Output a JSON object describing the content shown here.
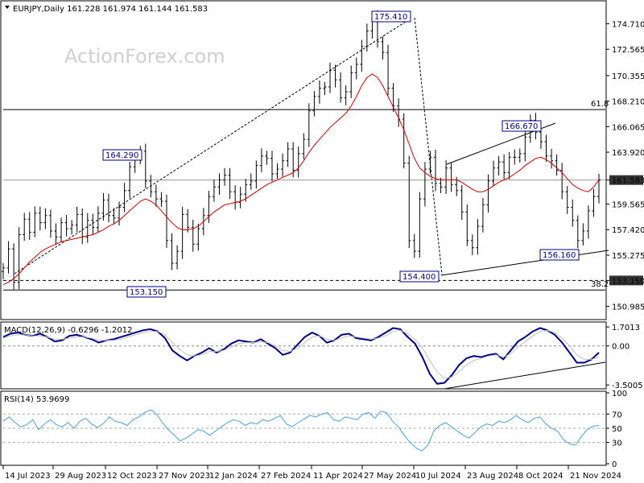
{
  "header": {
    "main": "EURJPY,Daily  161.228 161.974 161.144 161.583",
    "macd": "MACD(12,26,9) -0.6296 -1.2012",
    "rsi": "RSI(14) 53.9699"
  },
  "watermark": "ActionForex.com",
  "colors": {
    "candle": "#000000",
    "ma": "#d00000",
    "macd": "#000080",
    "signal": "#c0c0c0",
    "rsi": "#4aa0d8",
    "label_text": "#000080",
    "price_tag_bg": "#333333"
  },
  "chart_data": [
    {
      "type": "candlestick",
      "title": "EURJPY,Daily",
      "ohlc_last": {
        "open": 161.228,
        "high": 161.974,
        "low": 161.144,
        "close": 161.583
      },
      "ylim": [
        150.0,
        176.5
      ],
      "y_ticks": [
        "174.710",
        "172.565",
        "170.355",
        "168.210",
        "166.065",
        "163.920",
        "161.583",
        "159.565",
        "157.420",
        "155.275",
        "153.150",
        "150.985"
      ],
      "x_ticks": [
        "14 Jul 2023",
        "29 Aug 2023",
        "12 Oct 2023",
        "27 Nov 2023",
        "12 Jan 2024",
        "27 Feb 2024",
        "11 Apr 2024",
        "27 May 2024",
        "10 Jul 2024",
        "23 Aug 2024",
        "8 Oct 2024",
        "21 Nov 2024"
      ],
      "close_series": [
        154.2,
        155.8,
        153.0,
        157.0,
        158.3,
        157.2,
        158.8,
        158.0,
        158.6,
        157.3,
        156.8,
        158.0,
        157.5,
        157.8,
        158.7,
        156.8,
        158.2,
        157.6,
        158.8,
        159.9,
        158.6,
        158.4,
        159.3,
        160.7,
        162.7,
        163.5,
        164.0,
        161.5,
        160.6,
        160.0,
        159.8,
        156.5,
        154.6,
        155.6,
        158.7,
        157.6,
        156.2,
        157.5,
        158.6,
        160.2,
        161.0,
        161.6,
        162.0,
        160.6,
        159.7,
        160.4,
        161.2,
        161.5,
        162.8,
        163.6,
        163.4,
        162.1,
        162.5,
        163.2,
        164.2,
        162.4,
        163.8,
        165.0,
        167.4,
        168.6,
        169.3,
        169.4,
        170.8,
        170.0,
        168.5,
        169.0,
        170.6,
        171.3,
        172.8,
        174.1,
        175.2,
        173.2,
        172.3,
        169.3,
        167.8,
        166.7,
        163.0,
        156.5,
        155.6,
        160.0,
        162.5,
        163.5,
        161.3,
        161.0,
        162.6,
        161.2,
        160.7,
        158.9,
        156.5,
        155.9,
        157.7,
        159.5,
        161.5,
        162.6,
        163.1,
        162.2,
        163.5,
        163.5,
        163.8,
        165.2,
        166.6,
        165.6,
        164.8,
        163.6,
        163.2,
        162.4,
        160.6,
        159.3,
        158.2,
        156.5,
        157.3,
        159.0,
        160.2,
        161.6
      ],
      "ma_series": [
        152.8,
        153.0,
        153.3,
        153.7,
        154.2,
        154.7,
        155.1,
        155.5,
        155.8,
        156.0,
        156.2,
        156.4,
        156.5,
        156.6,
        156.7,
        156.8,
        156.9,
        157.0,
        157.2,
        157.4,
        157.7,
        157.9,
        158.2,
        158.6,
        159.0,
        159.4,
        159.8,
        160.0,
        159.8,
        159.5,
        159.0,
        158.5,
        158.0,
        157.6,
        157.4,
        157.4,
        157.5,
        157.7,
        158.1,
        158.5,
        158.9,
        159.2,
        159.5,
        159.6,
        159.7,
        159.8,
        160.0,
        160.3,
        160.6,
        160.9,
        161.2,
        161.4,
        161.6,
        161.8,
        162.0,
        162.2,
        162.6,
        163.2,
        163.9,
        164.5,
        165.0,
        165.5,
        166.0,
        166.4,
        166.8,
        167.2,
        167.8,
        168.6,
        169.5,
        170.2,
        170.5,
        170.2,
        169.5,
        168.6,
        167.7,
        166.8,
        165.8,
        164.6,
        163.4,
        162.6,
        162.2,
        161.9,
        161.7,
        161.6,
        161.6,
        161.6,
        161.6,
        161.4,
        161.1,
        160.8,
        160.6,
        160.6,
        160.8,
        161.1,
        161.4,
        161.6,
        161.8,
        162.1,
        162.4,
        162.8,
        163.1,
        163.4,
        163.5,
        163.3,
        163.0,
        162.6,
        162.2,
        161.7,
        161.2,
        160.9,
        160.7,
        160.6,
        161.0,
        161.6
      ],
      "lines": {
        "fib_61_8": 167.5,
        "fib_38_2": 152.35,
        "support": 153.15
      },
      "annotations": {
        "labels": [
          {
            "text": "175.410",
            "value": 175.41
          },
          {
            "text": "164.290",
            "value": 164.29
          },
          {
            "text": "153.150",
            "value": 153.15
          },
          {
            "text": "166.670",
            "value": 166.67
          },
          {
            "text": "154.400",
            "value": 154.4
          },
          {
            "text": "156.160",
            "value": 156.16
          }
        ],
        "fib_labels": [
          "61.8",
          "38.2"
        ]
      },
      "price_tags": [
        "161.583",
        "153.150"
      ]
    },
    {
      "type": "line",
      "title": "MACD(12,26,9)",
      "ylim": [
        -3.7,
        2.0
      ],
      "y_ticks": [
        "1.7013",
        "0.00",
        "-3.5005"
      ],
      "series": [
        {
          "name": "MACD",
          "values": [
            0.8,
            1.1,
            1.2,
            1.0,
            0.9,
            1.1,
            0.8,
            0.4,
            0.5,
            0.9,
            1.0,
            0.8,
            0.6,
            0.3,
            0.5,
            0.6,
            0.8,
            1.0,
            1.2,
            1.4,
            1.5,
            1.3,
            0.7,
            -0.4,
            -0.9,
            -1.3,
            -0.9,
            -0.6,
            -0.2,
            -0.6,
            -0.3,
            0.2,
            0.5,
            0.4,
            0.3,
            0.6,
            0.2,
            -0.2,
            -0.8,
            -0.6,
            0.1,
            0.8,
            1.2,
            0.9,
            0.3,
            0.5,
            1.0,
            1.1,
            0.7,
            0.6,
            0.5,
            0.8,
            1.2,
            1.6,
            1.5,
            0.8,
            0.2,
            -1.0,
            -2.5,
            -3.4,
            -3.3,
            -2.6,
            -1.7,
            -1.1,
            -0.9,
            -1.0,
            -0.8,
            -0.7,
            -1.2,
            -0.4,
            0.4,
            0.8,
            1.3,
            1.6,
            1.4,
            1.0,
            0.3,
            -0.6,
            -1.5,
            -1.5,
            -1.2,
            -0.6
          ]
        },
        {
          "name": "Signal",
          "values": [
            0.7,
            0.9,
            1.0,
            1.0,
            0.9,
            0.9,
            0.8,
            0.6,
            0.6,
            0.7,
            0.8,
            0.8,
            0.7,
            0.5,
            0.5,
            0.5,
            0.6,
            0.8,
            1.0,
            1.2,
            1.3,
            1.3,
            1.0,
            0.3,
            -0.3,
            -0.8,
            -0.9,
            -0.8,
            -0.5,
            -0.5,
            -0.4,
            -0.1,
            0.2,
            0.3,
            0.3,
            0.4,
            0.3,
            0.0,
            -0.4,
            -0.5,
            -0.2,
            0.3,
            0.8,
            0.9,
            0.6,
            0.5,
            0.7,
            0.9,
            0.8,
            0.7,
            0.6,
            0.7,
            0.9,
            1.3,
            1.4,
            1.1,
            0.6,
            -0.2,
            -1.3,
            -2.3,
            -2.9,
            -2.8,
            -2.3,
            -1.7,
            -1.3,
            -1.1,
            -0.9,
            -0.8,
            -1.0,
            -0.7,
            -0.1,
            0.4,
            0.9,
            1.3,
            1.4,
            1.2,
            0.7,
            0.0,
            -0.8,
            -1.2,
            -1.2,
            -1.0
          ]
        }
      ]
    },
    {
      "type": "line",
      "title": "RSI(14)",
      "ylim": [
        0,
        100
      ],
      "y_ticks": [
        "100",
        "70",
        "50",
        "30",
        "0"
      ],
      "series": [
        {
          "name": "RSI",
          "values": [
            60,
            66,
            58,
            52,
            55,
            62,
            48,
            56,
            62,
            55,
            52,
            58,
            50,
            60,
            64,
            56,
            51,
            57,
            66,
            60,
            58,
            54,
            62,
            66,
            72,
            76,
            70,
            58,
            48,
            40,
            32,
            36,
            42,
            48,
            46,
            40,
            46,
            52,
            58,
            62,
            60,
            54,
            58,
            56,
            62,
            60,
            64,
            68,
            56,
            52,
            58,
            63,
            68,
            66,
            70,
            72,
            62,
            60,
            66,
            64,
            62,
            70,
            72,
            64,
            74,
            72,
            60,
            52,
            40,
            30,
            22,
            18,
            26,
            46,
            54,
            58,
            52,
            46,
            40,
            36,
            44,
            52,
            56,
            54,
            60,
            58,
            62,
            68,
            62,
            58,
            64,
            66,
            56,
            50,
            46,
            34,
            28,
            26,
            38,
            48,
            53,
            54
          ]
        }
      ]
    }
  ]
}
